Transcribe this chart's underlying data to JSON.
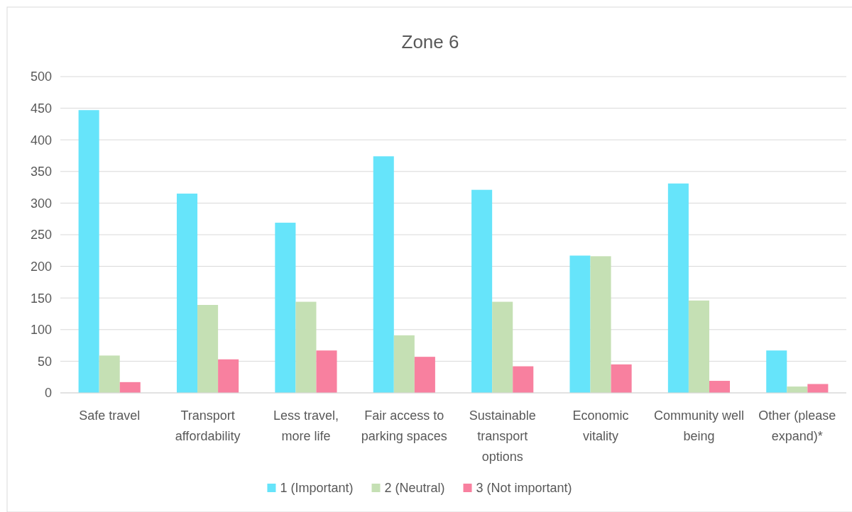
{
  "chart_data": {
    "type": "bar",
    "title": "Zone 6",
    "categories": [
      "Safe travel",
      "Transport affordability",
      "Less travel, more life",
      "Fair access to parking spaces",
      "Sustainable transport options",
      "Economic vitality",
      "Community well being",
      "Other (please expand)*"
    ],
    "series": [
      {
        "name": "1 (Important)",
        "color": "#66e4fa",
        "values": [
          447,
          315,
          269,
          374,
          321,
          217,
          331,
          67
        ]
      },
      {
        "name": "2 (Neutral)",
        "color": "#c5e0b4",
        "values": [
          59,
          139,
          144,
          91,
          144,
          216,
          146,
          10
        ]
      },
      {
        "name": "3 (Not important)",
        "color": "#f8809f",
        "values": [
          17,
          53,
          67,
          57,
          42,
          45,
          19,
          14
        ]
      }
    ],
    "ylim": [
      0,
      500
    ],
    "yticks": [
      0,
      50,
      100,
      150,
      200,
      250,
      300,
      350,
      400,
      450,
      500
    ],
    "grid": "y",
    "legend": "bottom"
  }
}
